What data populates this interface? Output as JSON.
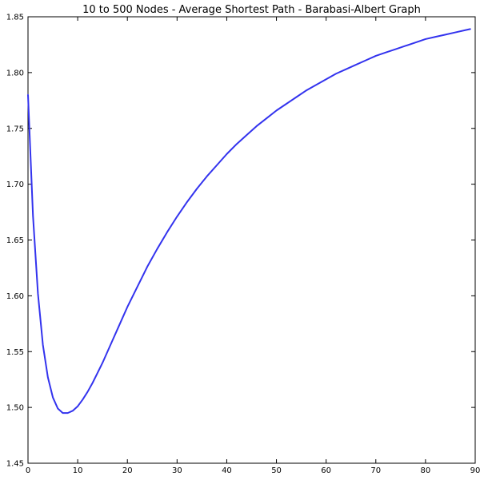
{
  "chart_data": {
    "type": "line",
    "title": "10 to 500 Nodes - Average Shortest Path - Barabasi-Albert Graph",
    "xlabel": "",
    "ylabel": "",
    "xlim": [
      0,
      90
    ],
    "ylim": [
      1.45,
      1.85
    ],
    "x_ticks": [
      0,
      10,
      20,
      30,
      40,
      50,
      60,
      70,
      80,
      90
    ],
    "x_tick_labels": [
      "0",
      "10",
      "20",
      "30",
      "40",
      "50",
      "60",
      "70",
      "80",
      "90"
    ],
    "y_ticks": [
      1.45,
      1.5,
      1.55,
      1.6,
      1.65,
      1.7,
      1.75,
      1.8,
      1.85
    ],
    "y_tick_labels": [
      "1.45",
      "1.50",
      "1.55",
      "1.60",
      "1.65",
      "1.70",
      "1.75",
      "1.80",
      "1.85"
    ],
    "grid": false,
    "legend": "none",
    "series": [
      {
        "color": "#3333ee",
        "x": [
          0,
          1,
          2,
          3,
          4,
          5,
          6,
          7,
          8,
          9,
          10,
          11,
          12,
          13,
          14,
          15,
          16,
          17,
          18,
          19,
          20,
          22,
          24,
          26,
          28,
          30,
          32,
          34,
          36,
          38,
          40,
          42,
          44,
          46,
          48,
          50,
          52,
          54,
          56,
          58,
          60,
          62,
          64,
          66,
          68,
          70,
          72,
          74,
          76,
          78,
          80,
          82,
          84,
          86,
          88,
          89
        ],
        "y": [
          1.78,
          1.672,
          1.602,
          1.556,
          1.527,
          1.509,
          1.499,
          1.495,
          1.495,
          1.497,
          1.501,
          1.507,
          1.514,
          1.522,
          1.531,
          1.54,
          1.55,
          1.56,
          1.57,
          1.58,
          1.59,
          1.608,
          1.626,
          1.642,
          1.657,
          1.671,
          1.684,
          1.696,
          1.707,
          1.717,
          1.727,
          1.736,
          1.744,
          1.752,
          1.759,
          1.766,
          1.772,
          1.778,
          1.784,
          1.789,
          1.794,
          1.799,
          1.803,
          1.807,
          1.811,
          1.815,
          1.818,
          1.821,
          1.824,
          1.827,
          1.83,
          1.832,
          1.834,
          1.836,
          1.838,
          1.839
        ]
      }
    ]
  }
}
